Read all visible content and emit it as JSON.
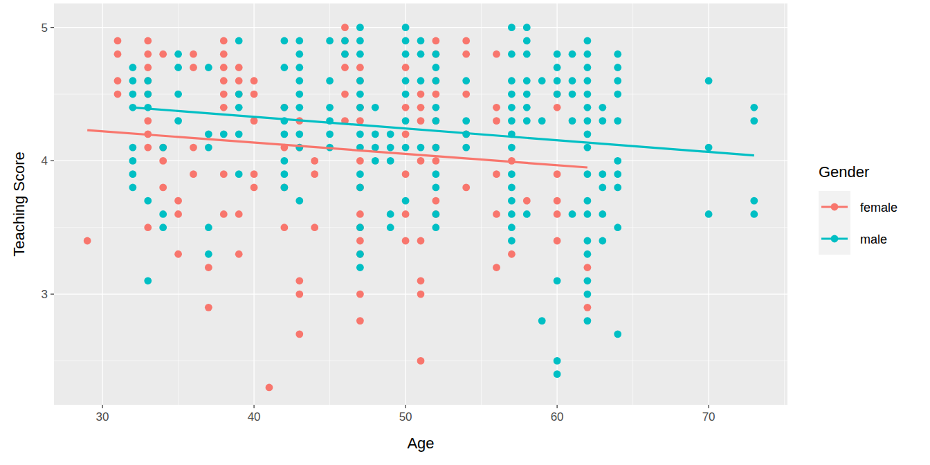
{
  "chart_data": {
    "type": "scatter",
    "x_label": "Age",
    "y_label": "Teaching Score",
    "legend_title": "Gender",
    "legend": "right",
    "grid": true,
    "xlim": [
      26.8,
      75.2
    ],
    "ylim": [
      2.17,
      5.18
    ],
    "xticks": [
      30,
      40,
      50,
      60,
      70
    ],
    "yticks": [
      3,
      4,
      5
    ],
    "series": [
      {
        "name": "female",
        "color": "#F8766D",
        "marker": "circle",
        "x": [
          29,
          31,
          31,
          31,
          31,
          33,
          33,
          33,
          33,
          33,
          33,
          33,
          33,
          33,
          34,
          34,
          34,
          34,
          35,
          35,
          35,
          36,
          36,
          36,
          36,
          37,
          37,
          38,
          38,
          38,
          38,
          38,
          38,
          38,
          38,
          39,
          39,
          39,
          39,
          39,
          40,
          40,
          40,
          40,
          40,
          41,
          42,
          42,
          42,
          42,
          43,
          43,
          43,
          43,
          43,
          44,
          44,
          44,
          46,
          46,
          46,
          46,
          46,
          46,
          47,
          47,
          47,
          47,
          47,
          47,
          47,
          47,
          47,
          47,
          47,
          47,
          50,
          50,
          50,
          50,
          50,
          50,
          51,
          51,
          51,
          51,
          51,
          51,
          51,
          51,
          52,
          52,
          52,
          52,
          52,
          52,
          52,
          52,
          52,
          54,
          54,
          54,
          54,
          54,
          56,
          56,
          56,
          56,
          56,
          56,
          57,
          57,
          58,
          60,
          60,
          60,
          60,
          60,
          60,
          62,
          62
        ],
        "values": [
          3.4,
          4.9,
          4.8,
          4.6,
          4.5,
          4.9,
          4.8,
          4.7,
          4.6,
          4.5,
          4.3,
          4.2,
          4.1,
          3.5,
          4.8,
          4.1,
          4.0,
          3.8,
          3.7,
          3.6,
          3.3,
          4.8,
          4.7,
          4.1,
          3.9,
          3.2,
          2.9,
          4.9,
          4.8,
          4.7,
          4.6,
          4.5,
          4.4,
          3.9,
          3.6,
          4.7,
          4.6,
          4.5,
          3.6,
          3.3,
          4.6,
          4.5,
          4.3,
          3.9,
          3.8,
          2.3,
          4.4,
          4.1,
          3.8,
          3.5,
          4.3,
          4.1,
          3.1,
          3.0,
          2.7,
          4.0,
          3.9,
          3.5,
          5.0,
          4.9,
          4.8,
          4.7,
          4.5,
          4.3,
          4.7,
          4.6,
          4.4,
          4.3,
          4.0,
          3.8,
          3.6,
          3.5,
          3.4,
          3.3,
          3.0,
          2.8,
          4.7,
          4.4,
          4.2,
          3.9,
          3.6,
          3.4,
          4.5,
          4.4,
          4.3,
          4.0,
          3.4,
          3.1,
          3.0,
          2.5,
          4.9,
          4.8,
          4.6,
          4.5,
          4.3,
          4.1,
          4.0,
          3.7,
          3.6,
          4.9,
          4.8,
          4.5,
          4.2,
          3.8,
          4.8,
          4.4,
          4.3,
          3.9,
          3.6,
          3.2,
          4.0,
          3.3,
          3.7,
          4.5,
          4.4,
          3.9,
          3.7,
          3.6,
          3.4,
          3.2,
          2.9
        ],
        "trend_x": [
          29,
          62
        ],
        "trend_values": [
          4.23,
          3.95
        ]
      },
      {
        "name": "male",
        "color": "#00BFC4",
        "marker": "circle",
        "x": [
          32,
          32,
          32,
          32,
          32,
          32,
          32,
          32,
          33,
          33,
          33,
          33,
          33,
          34,
          34,
          34,
          35,
          35,
          35,
          35,
          37,
          37,
          37,
          37,
          37,
          38,
          39,
          39,
          39,
          39,
          39,
          42,
          42,
          42,
          42,
          42,
          42,
          42,
          42,
          43,
          43,
          43,
          43,
          43,
          43,
          43,
          43,
          43,
          45,
          45,
          45,
          45,
          45,
          45,
          46,
          46,
          47,
          47,
          47,
          47,
          47,
          47,
          47,
          47,
          47,
          47,
          47,
          47,
          47,
          48,
          48,
          48,
          48,
          49,
          49,
          49,
          49,
          49,
          50,
          50,
          50,
          50,
          50,
          50,
          50,
          50,
          51,
          51,
          51,
          51,
          52,
          52,
          52,
          52,
          52,
          52,
          52,
          52,
          52,
          52,
          54,
          54,
          54,
          54,
          57,
          57,
          57,
          57,
          57,
          57,
          57,
          57,
          57,
          57,
          57,
          57,
          57,
          57,
          58,
          58,
          58,
          58,
          58,
          58,
          58,
          58,
          59,
          59,
          59,
          60,
          60,
          60,
          60,
          60,
          60,
          60,
          61,
          61,
          61,
          61,
          61,
          62,
          62,
          62,
          62,
          62,
          62,
          62,
          62,
          62,
          62,
          62,
          62,
          62,
          62,
          62,
          62,
          62,
          63,
          63,
          63,
          63,
          63,
          63,
          64,
          64,
          64,
          64,
          64,
          64,
          64,
          64,
          64,
          64,
          70,
          70,
          70,
          73,
          73,
          73,
          73
        ],
        "values": [
          4.7,
          4.6,
          4.5,
          4.4,
          4.1,
          4.0,
          3.9,
          3.8,
          4.6,
          4.5,
          4.4,
          3.7,
          3.1,
          4.1,
          3.6,
          3.5,
          4.8,
          4.7,
          4.5,
          4.3,
          4.7,
          4.2,
          4.1,
          3.5,
          3.3,
          4.2,
          4.9,
          4.5,
          4.4,
          4.2,
          3.9,
          4.9,
          4.7,
          4.4,
          4.3,
          4.2,
          4.0,
          3.9,
          3.8,
          4.9,
          4.8,
          4.7,
          4.6,
          4.5,
          4.4,
          4.2,
          4.1,
          3.7,
          4.9,
          4.6,
          4.4,
          4.3,
          4.2,
          4.1,
          4.9,
          4.8,
          5.0,
          4.9,
          4.8,
          4.6,
          4.5,
          4.4,
          4.2,
          4.1,
          3.9,
          3.8,
          3.5,
          3.3,
          3.2,
          4.4,
          4.2,
          4.1,
          4.0,
          4.2,
          4.1,
          4.0,
          3.6,
          3.5,
          5.0,
          4.9,
          4.8,
          4.6,
          4.5,
          4.3,
          4.1,
          3.7,
          4.9,
          4.8,
          4.6,
          4.1,
          4.8,
          4.7,
          4.6,
          4.4,
          4.3,
          4.1,
          3.9,
          3.8,
          3.6,
          3.5,
          4.6,
          4.3,
          4.2,
          4.1,
          5.0,
          4.8,
          4.6,
          4.5,
          4.4,
          4.3,
          4.2,
          4.1,
          3.9,
          3.8,
          3.7,
          3.6,
          3.5,
          3.4,
          5.0,
          4.9,
          4.8,
          4.6,
          4.5,
          4.4,
          4.3,
          3.6,
          4.6,
          4.3,
          2.8,
          4.8,
          4.7,
          4.6,
          4.5,
          3.1,
          2.5,
          2.4,
          4.8,
          4.6,
          4.5,
          4.3,
          3.6,
          4.9,
          4.8,
          4.7,
          4.6,
          4.5,
          4.4,
          4.3,
          4.2,
          4.1,
          3.9,
          3.7,
          3.6,
          3.4,
          3.3,
          3.1,
          3.0,
          2.8,
          4.4,
          4.3,
          3.9,
          3.8,
          3.6,
          3.4,
          4.8,
          4.7,
          4.6,
          4.5,
          4.3,
          4.0,
          3.9,
          3.8,
          3.5,
          2.7,
          4.6,
          4.1,
          3.6,
          4.4,
          4.3,
          3.7,
          3.6
        ],
        "trend_x": [
          32,
          73
        ],
        "trend_values": [
          4.4,
          4.04
        ]
      }
    ]
  }
}
